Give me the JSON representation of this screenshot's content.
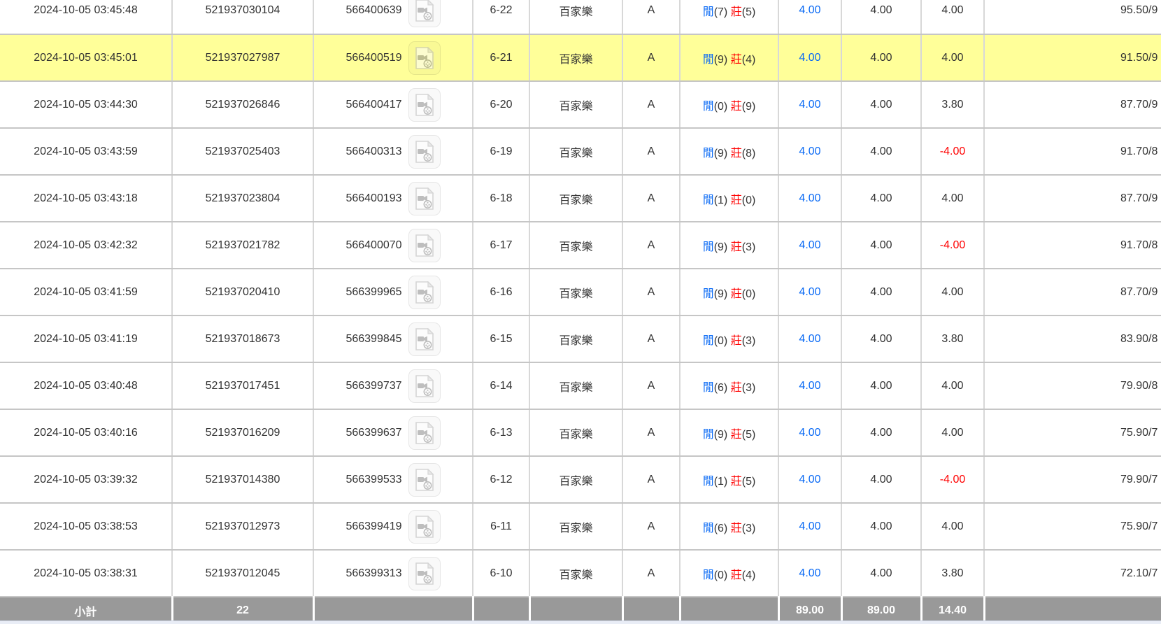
{
  "strings": {
    "player_label": "閒",
    "banker_label": "莊",
    "video_icon_name": "video-record-icon"
  },
  "colors": {
    "accent_blue": "#0a6af5",
    "accent_red": "#ff0000",
    "row_highlight": "#ffff99",
    "subtotal_bg": "#999999",
    "subtotal_text": "#ffffff"
  },
  "rows": [
    {
      "time": "2024-10-05 03:45:48",
      "bet_id": "521937030104",
      "round_id": "566400639",
      "round_no": "6-22",
      "game": "百家樂",
      "table": "A",
      "player": "(7)",
      "banker": "(5)",
      "valid_bet": "4.00",
      "bet_amount": "4.00",
      "win_loss": "4.00",
      "balance": "95.50/9",
      "highlighted": false
    },
    {
      "time": "2024-10-05 03:45:01",
      "bet_id": "521937027987",
      "round_id": "566400519",
      "round_no": "6-21",
      "game": "百家樂",
      "table": "A",
      "player": "(9)",
      "banker": "(4)",
      "valid_bet": "4.00",
      "bet_amount": "4.00",
      "win_loss": "4.00",
      "balance": "91.50/9",
      "highlighted": true
    },
    {
      "time": "2024-10-05 03:44:30",
      "bet_id": "521937026846",
      "round_id": "566400417",
      "round_no": "6-20",
      "game": "百家樂",
      "table": "A",
      "player": "(0)",
      "banker": "(9)",
      "valid_bet": "4.00",
      "bet_amount": "4.00",
      "win_loss": "3.80",
      "balance": "87.70/9",
      "highlighted": false
    },
    {
      "time": "2024-10-05 03:43:59",
      "bet_id": "521937025403",
      "round_id": "566400313",
      "round_no": "6-19",
      "game": "百家樂",
      "table": "A",
      "player": "(9)",
      "banker": "(8)",
      "valid_bet": "4.00",
      "bet_amount": "4.00",
      "win_loss": "-4.00",
      "balance": "91.70/8",
      "highlighted": false
    },
    {
      "time": "2024-10-05 03:43:18",
      "bet_id": "521937023804",
      "round_id": "566400193",
      "round_no": "6-18",
      "game": "百家樂",
      "table": "A",
      "player": "(1)",
      "banker": "(0)",
      "valid_bet": "4.00",
      "bet_amount": "4.00",
      "win_loss": "4.00",
      "balance": "87.70/9",
      "highlighted": false
    },
    {
      "time": "2024-10-05 03:42:32",
      "bet_id": "521937021782",
      "round_id": "566400070",
      "round_no": "6-17",
      "game": "百家樂",
      "table": "A",
      "player": "(9)",
      "banker": "(3)",
      "valid_bet": "4.00",
      "bet_amount": "4.00",
      "win_loss": "-4.00",
      "balance": "91.70/8",
      "highlighted": false
    },
    {
      "time": "2024-10-05 03:41:59",
      "bet_id": "521937020410",
      "round_id": "566399965",
      "round_no": "6-16",
      "game": "百家樂",
      "table": "A",
      "player": "(9)",
      "banker": "(0)",
      "valid_bet": "4.00",
      "bet_amount": "4.00",
      "win_loss": "4.00",
      "balance": "87.70/9",
      "highlighted": false
    },
    {
      "time": "2024-10-05 03:41:19",
      "bet_id": "521937018673",
      "round_id": "566399845",
      "round_no": "6-15",
      "game": "百家樂",
      "table": "A",
      "player": "(0)",
      "banker": "(3)",
      "valid_bet": "4.00",
      "bet_amount": "4.00",
      "win_loss": "3.80",
      "balance": "83.90/8",
      "highlighted": false
    },
    {
      "time": "2024-10-05 03:40:48",
      "bet_id": "521937017451",
      "round_id": "566399737",
      "round_no": "6-14",
      "game": "百家樂",
      "table": "A",
      "player": "(6)",
      "banker": "(3)",
      "valid_bet": "4.00",
      "bet_amount": "4.00",
      "win_loss": "4.00",
      "balance": "79.90/8",
      "highlighted": false
    },
    {
      "time": "2024-10-05 03:40:16",
      "bet_id": "521937016209",
      "round_id": "566399637",
      "round_no": "6-13",
      "game": "百家樂",
      "table": "A",
      "player": "(9)",
      "banker": "(5)",
      "valid_bet": "4.00",
      "bet_amount": "4.00",
      "win_loss": "4.00",
      "balance": "75.90/7",
      "highlighted": false
    },
    {
      "time": "2024-10-05 03:39:32",
      "bet_id": "521937014380",
      "round_id": "566399533",
      "round_no": "6-12",
      "game": "百家樂",
      "table": "A",
      "player": "(1)",
      "banker": "(5)",
      "valid_bet": "4.00",
      "bet_amount": "4.00",
      "win_loss": "-4.00",
      "balance": "79.90/7",
      "highlighted": false
    },
    {
      "time": "2024-10-05 03:38:53",
      "bet_id": "521937012973",
      "round_id": "566399419",
      "round_no": "6-11",
      "game": "百家樂",
      "table": "A",
      "player": "(6)",
      "banker": "(3)",
      "valid_bet": "4.00",
      "bet_amount": "4.00",
      "win_loss": "4.00",
      "balance": "75.90/7",
      "highlighted": false
    },
    {
      "time": "2024-10-05 03:38:31",
      "bet_id": "521937012045",
      "round_id": "566399313",
      "round_no": "6-10",
      "game": "百家樂",
      "table": "A",
      "player": "(0)",
      "banker": "(4)",
      "valid_bet": "4.00",
      "bet_amount": "4.00",
      "win_loss": "3.80",
      "balance": "72.10/7",
      "highlighted": false
    }
  ],
  "subtotal": {
    "label": "小計",
    "count": "22",
    "valid_bet_total": "89.00",
    "bet_amount_total": "89.00",
    "win_loss_total": "14.40"
  }
}
